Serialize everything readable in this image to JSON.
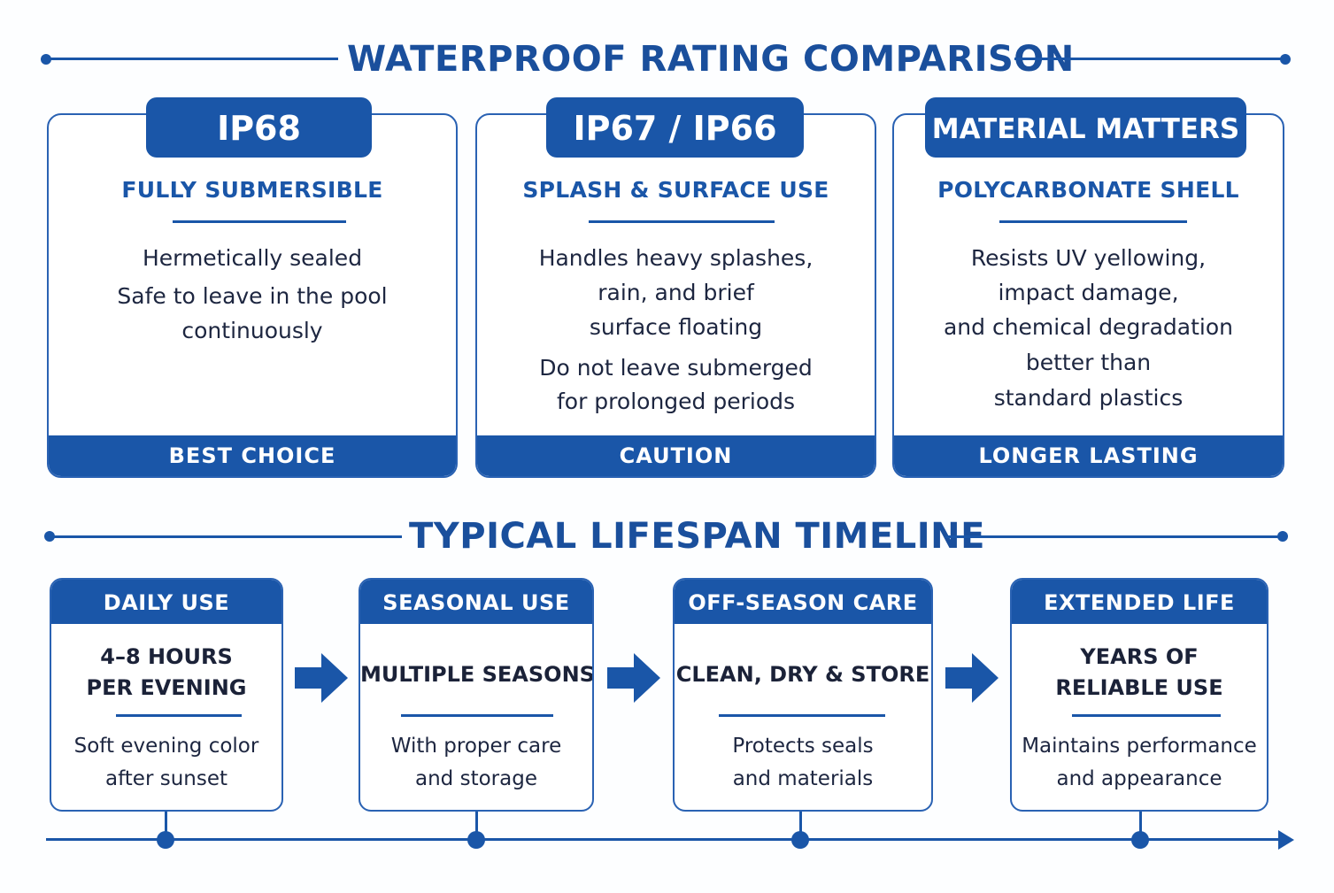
{
  "colors": {
    "primary": "#1a56a8",
    "background": "#fdfeff",
    "text": "#1d2640"
  },
  "rating_section": {
    "title": "WATERPROOF RATING COMPARISON",
    "cards": [
      {
        "badge": "IP68",
        "subtitle": "FULLY SUBMERSIBLE",
        "lines": [
          "Hermetically sealed",
          "Safe to leave in the pool",
          "continuously"
        ],
        "footer": "BEST CHOICE"
      },
      {
        "badge": "IP67 / IP66",
        "subtitle": "SPLASH & SURFACE USE",
        "lines": [
          "Handles heavy splashes,",
          "rain, and brief",
          "surface floating",
          "Do not leave submerged",
          "for prolonged periods"
        ],
        "footer": "CAUTION"
      },
      {
        "badge": "MATERIAL MATTERS",
        "subtitle": "POLYCARBONATE SHELL",
        "lines": [
          "Resists UV yellowing,",
          "impact damage,",
          "and chemical degradation",
          "better than",
          "standard plastics"
        ],
        "footer": "LONGER LASTING"
      }
    ]
  },
  "timeline_section": {
    "title": "TYPICAL LIFESPAN TIMELINE",
    "stages": [
      {
        "header": "DAILY USE",
        "main": [
          "4–8 HOURS",
          "PER EVENING"
        ],
        "desc": [
          "Soft evening color",
          "after sunset"
        ]
      },
      {
        "header": "SEASONAL USE",
        "main": [
          "MULTIPLE SEASONS"
        ],
        "desc": [
          "With proper care",
          "and storage"
        ]
      },
      {
        "header": "OFF-SEASON CARE",
        "main": [
          "CLEAN, DRY & STORE"
        ],
        "desc": [
          "Protects seals",
          "and materials"
        ]
      },
      {
        "header": "EXTENDED LIFE",
        "main": [
          "YEARS OF",
          "RELIABLE USE"
        ],
        "desc": [
          "Maintains performance",
          "and appearance"
        ]
      }
    ],
    "icons": {
      "stage_connector": "arrow-right-icon",
      "axis_end": "arrowhead-icon"
    }
  }
}
